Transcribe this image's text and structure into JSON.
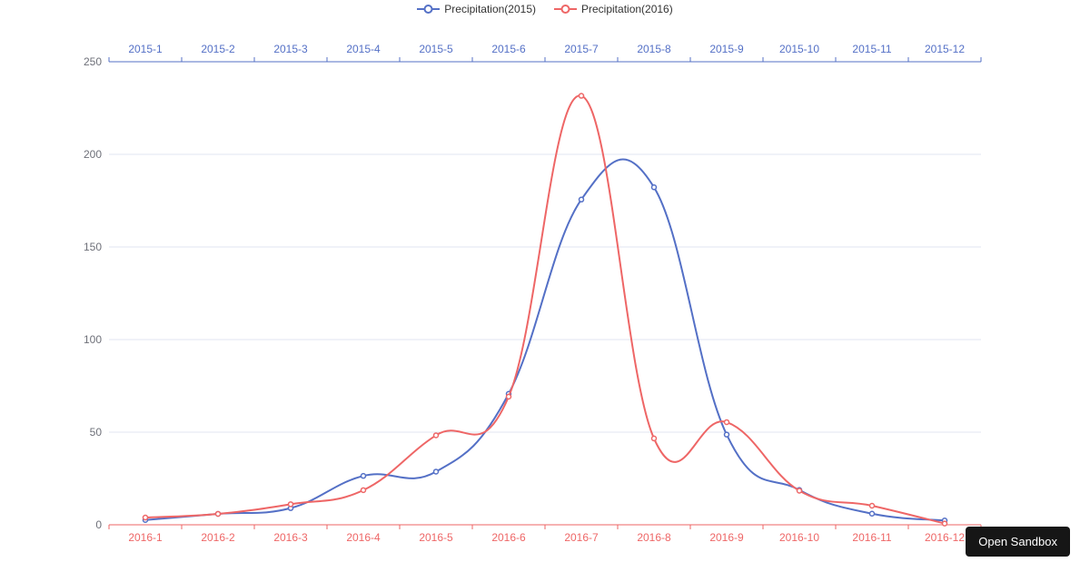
{
  "legend": {
    "items": [
      {
        "label": "Precipitation(2015)",
        "color": "#5470c6"
      },
      {
        "label": "Precipitation(2016)",
        "color": "#ee6666"
      }
    ]
  },
  "sandbox_button": {
    "label": "Open Sandbox"
  },
  "chart_data": {
    "type": "line",
    "smooth": true,
    "grid": true,
    "legend_position": "top",
    "y_axis": {
      "min": 0,
      "max": 250,
      "tick_interval": 50,
      "tick_labels": [
        "0",
        "50",
        "100",
        "150",
        "200",
        "250"
      ],
      "label_color": "#6e7079",
      "gridline_color": "#e0e6f1"
    },
    "x_axes": [
      {
        "id": "top",
        "position": "top",
        "axis_color": "#5470c6",
        "categories": [
          "2015-1",
          "2015-2",
          "2015-3",
          "2015-4",
          "2015-5",
          "2015-6",
          "2015-7",
          "2015-8",
          "2015-9",
          "2015-10",
          "2015-11",
          "2015-12"
        ]
      },
      {
        "id": "bottom",
        "position": "bottom",
        "axis_color": "#ee6666",
        "categories": [
          "2016-1",
          "2016-2",
          "2016-3",
          "2016-4",
          "2016-5",
          "2016-6",
          "2016-7",
          "2016-8",
          "2016-9",
          "2016-10",
          "2016-11",
          "2016-12"
        ]
      }
    ],
    "series": [
      {
        "name": "Precipitation(2015)",
        "x_axis": "top",
        "color": "#5470c6",
        "values": [
          2.6,
          5.9,
          9.0,
          26.4,
          28.7,
          70.7,
          175.6,
          182.2,
          48.7,
          18.8,
          6.0,
          2.3
        ]
      },
      {
        "name": "Precipitation(2016)",
        "x_axis": "bottom",
        "color": "#ee6666",
        "values": [
          3.9,
          5.9,
          11.1,
          18.7,
          48.3,
          69.2,
          231.6,
          46.6,
          55.4,
          18.4,
          10.3,
          0.7
        ]
      }
    ]
  }
}
